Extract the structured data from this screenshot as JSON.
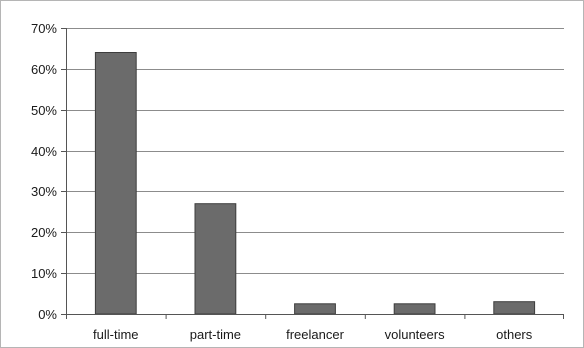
{
  "chart_data": {
    "type": "bar",
    "title": "",
    "xlabel": "",
    "ylabel": "",
    "categories": [
      "full-time",
      "part-time",
      "freelancer",
      "volunteers",
      "others"
    ],
    "values": [
      0.64,
      0.27,
      0.025,
      0.025,
      0.03
    ],
    "ylim": [
      0,
      0.7
    ],
    "yticks": [
      0,
      0.1,
      0.2,
      0.3,
      0.4,
      0.5,
      0.6,
      0.7
    ],
    "ytick_labels": [
      "0%",
      "10%",
      "20%",
      "30%",
      "40%",
      "50%",
      "60%",
      "70%"
    ],
    "grid": true,
    "legend": "none",
    "bar_color": "#6b6b6b",
    "bar_edge_color": "#3d3d3d",
    "grid_color": "#8c8c8c"
  }
}
